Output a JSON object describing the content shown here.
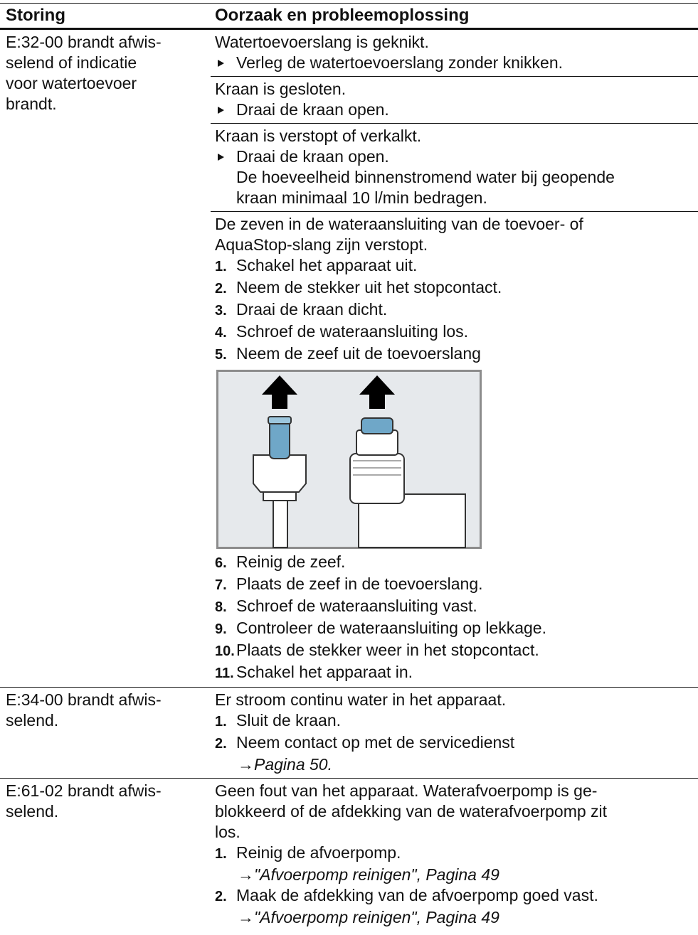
{
  "header": {
    "fault": "Storing",
    "cause": "Oorzaak en probleemoplossing"
  },
  "rows": [
    {
      "fault": [
        "E:32-00 brandt afwis-",
        "selend of indicatie",
        "voor watertoevoer",
        "brandt."
      ],
      "causes": [
        {
          "lines": [
            {
              "text": "Watertoevoerslang is geknikt."
            },
            {
              "bullet": "Verleg de watertoevoerslang zonder knikken."
            }
          ]
        },
        {
          "lines": [
            {
              "text": "Kraan is gesloten."
            },
            {
              "bullet": "Draai de kraan open."
            }
          ]
        },
        {
          "lines": [
            {
              "text": "Kraan is verstopt of verkalkt."
            },
            {
              "bullet": "Draai de kraan open."
            },
            {
              "indent": "De hoeveelheid binnenstromend water bij geopende"
            },
            {
              "indent": "kraan minimaal 10 l/min bedragen."
            }
          ]
        },
        {
          "lines": [
            {
              "text": "De zeven in de wateraansluiting van de toevoer- of"
            },
            {
              "text": "AquaStop-slang zijn verstopt."
            },
            {
              "num": "1.",
              "text": "Schakel het apparaat uit."
            },
            {
              "num": "2.",
              "text": "Neem de stekker uit het stopcontact."
            },
            {
              "num": "3.",
              "text": "Draai de kraan dicht."
            },
            {
              "num": "4.",
              "text": "Schroef de wateraansluiting los."
            },
            {
              "num": "5.",
              "text": "Neem de zeef uit de toevoerslang"
            }
          ],
          "steps_after_figure": [
            {
              "num": "6.",
              "text": "Reinig de zeef."
            },
            {
              "num": "7.",
              "text": "Plaats de zeef in de toevoerslang."
            },
            {
              "num": "8.",
              "text": "Schroef de wateraansluiting vast."
            },
            {
              "num": "9.",
              "text": "Controleer de wateraansluiting op lekkage."
            },
            {
              "num": "10.",
              "text": "Plaats de stekker weer in het stopcontact."
            },
            {
              "num": "11.",
              "text": "Schakel het apparaat in."
            }
          ]
        }
      ]
    },
    {
      "fault": [
        "E:34-00 brandt afwis-",
        "selend."
      ],
      "causes": [
        {
          "lines": [
            {
              "text": "Er stroom continu water in het apparaat."
            },
            {
              "num": "1.",
              "text": "Sluit de kraan."
            },
            {
              "num": "2.",
              "text": "Neem contact op met de servicedienst"
            },
            {
              "arrow": "→",
              "ref": "Pagina 50."
            }
          ]
        }
      ]
    },
    {
      "fault": [
        "E:61-02 brandt afwis-",
        "selend."
      ],
      "causes": [
        {
          "lines": [
            {
              "text": "Geen fout van het apparaat. Waterafvoerpomp is ge-"
            },
            {
              "text": "blokkeerd of de afdekking van de waterafvoerpomp zit"
            },
            {
              "text": "los."
            },
            {
              "num": "1.",
              "text": "Reinig de afvoerpomp."
            },
            {
              "arrow": "→",
              "ref": "\"Afvoerpomp reinigen\", Pagina 49"
            },
            {
              "num": "2.",
              "text": "Maak de afdekking van de afvoerpomp goed vast."
            },
            {
              "arrow": "→",
              "ref": "\"Afvoerpomp reinigen\", Pagina 49"
            }
          ]
        }
      ]
    }
  ]
}
